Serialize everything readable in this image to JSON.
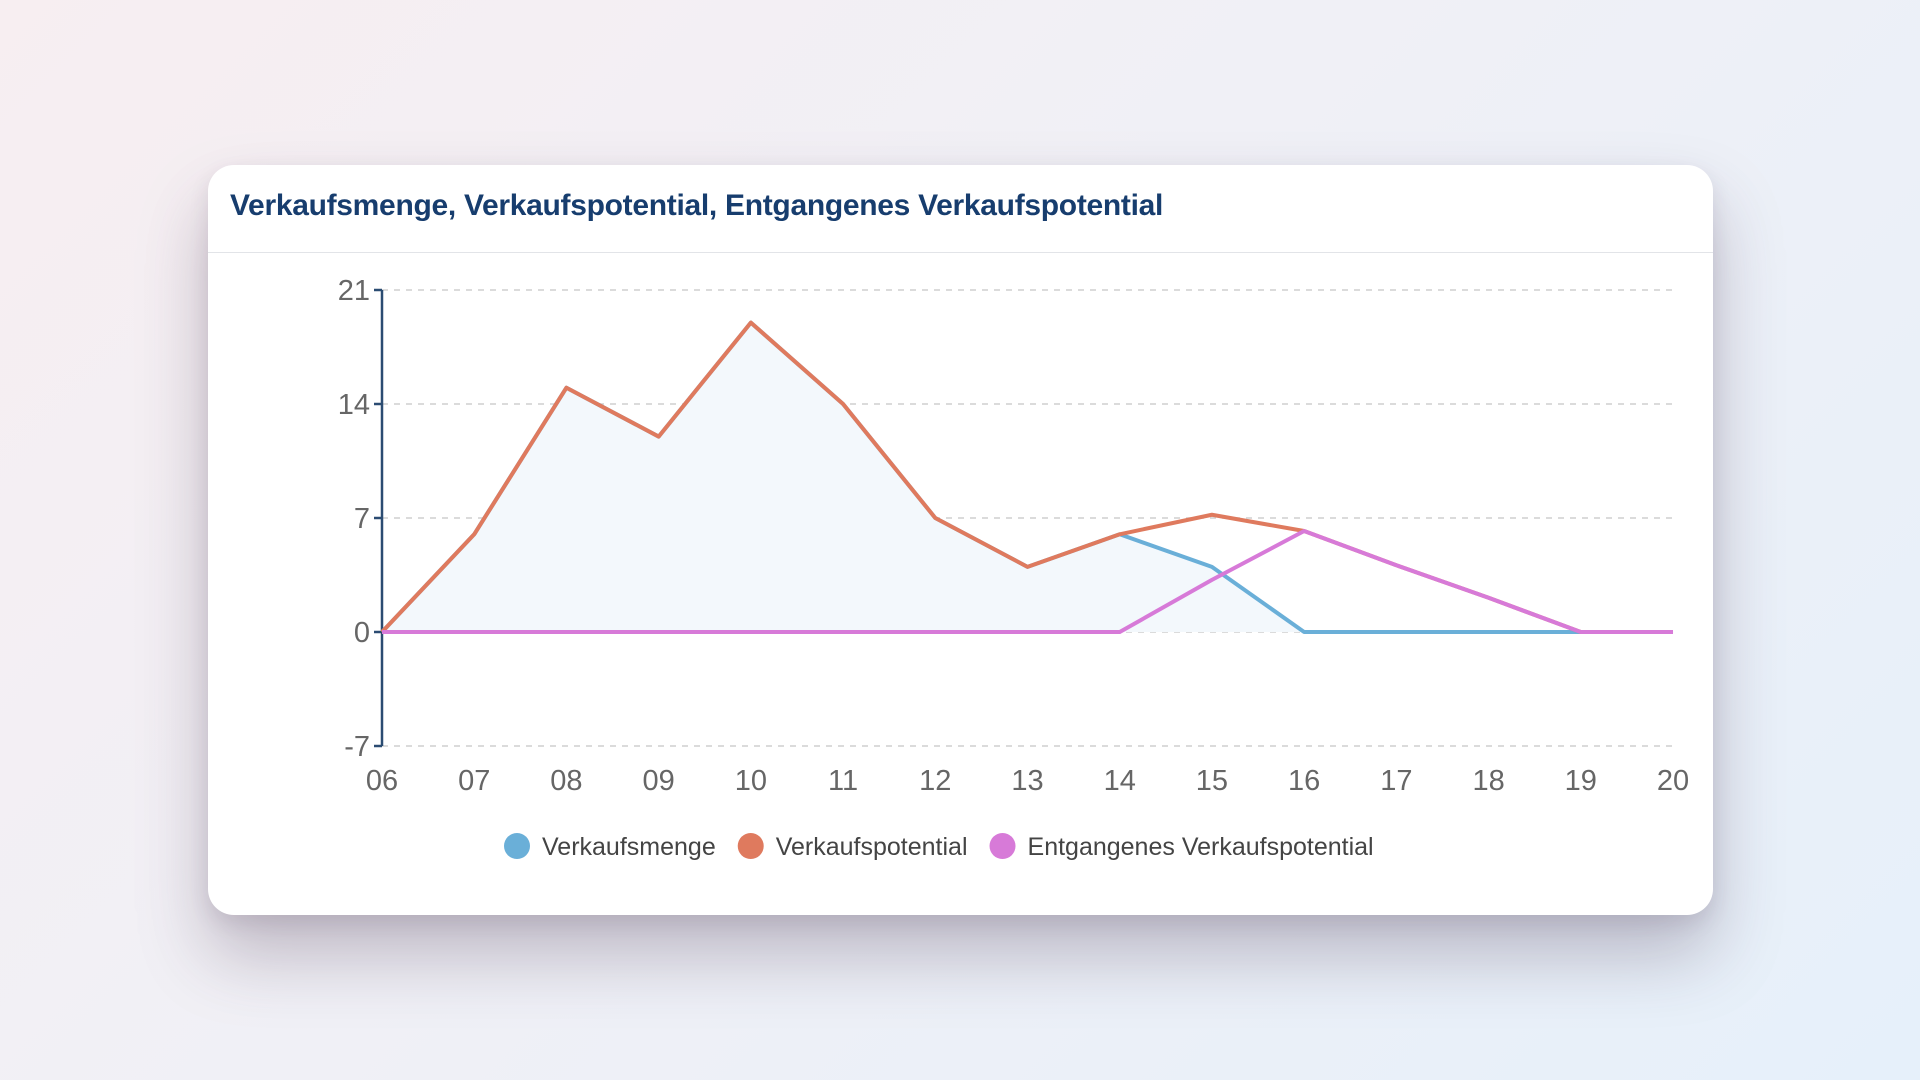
{
  "chart_data": {
    "type": "line",
    "title": "Verkaufsmenge, Verkaufspotential, Entgangenes Verkaufspotential",
    "categories": [
      "06",
      "07",
      "08",
      "09",
      "10",
      "11",
      "12",
      "13",
      "14",
      "15",
      "16",
      "17",
      "18",
      "19",
      "20"
    ],
    "ylim": [
      -7,
      21
    ],
    "yticks": [
      "21",
      "14",
      "7",
      "0",
      "-7"
    ],
    "ytick_values": [
      21,
      14,
      7,
      0,
      -7
    ],
    "grid": true,
    "legend_position": "bottom",
    "series": [
      {
        "name": "Verkaufsmenge",
        "color": "#6aafd8",
        "filled": true,
        "values": [
          0,
          6,
          15,
          12,
          19,
          14,
          7,
          4,
          6,
          4,
          0,
          0,
          0,
          0,
          0
        ]
      },
      {
        "name": "Verkaufspotential",
        "color": "#df7a5e",
        "values": [
          0,
          6,
          15,
          12,
          19,
          14,
          7,
          4,
          6,
          7.2,
          6.2,
          4.1,
          2.1,
          0,
          0
        ]
      },
      {
        "name": "Entgangenes Verkaufspotential",
        "color": "#d77ad8",
        "values": [
          0,
          0,
          0,
          0,
          0,
          0,
          0,
          0,
          0,
          3.2,
          6.2,
          4.1,
          2.1,
          0,
          0
        ]
      }
    ]
  },
  "colors": {
    "title": "#173d6e",
    "axis": "#2b4c72",
    "fill": "#f3f8fc"
  }
}
